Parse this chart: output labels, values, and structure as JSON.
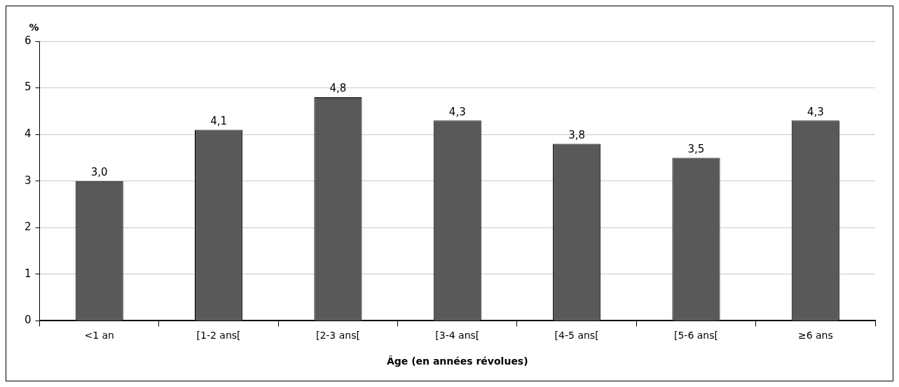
{
  "chart_data": {
    "type": "bar",
    "xlabel": "Âge (en années révolues)",
    "ylabel": "%",
    "categories": [
      "<1 an",
      "[1-2 ans[",
      "[2-3 ans[",
      "[3-4 ans[",
      "[4-5 ans[",
      "[5-6 ans[",
      "≥6 ans"
    ],
    "values": [
      3.0,
      4.1,
      4.8,
      4.3,
      3.8,
      3.5,
      4.3
    ],
    "value_labels": [
      "3,0",
      "4,1",
      "4,8",
      "4,3",
      "3,8",
      "3,5",
      "4,3"
    ],
    "color": "#595959",
    "ylim": [
      0,
      6
    ],
    "yticks": [
      0,
      1,
      2,
      3,
      4,
      5,
      6
    ],
    "grid": "y",
    "legend": false
  }
}
